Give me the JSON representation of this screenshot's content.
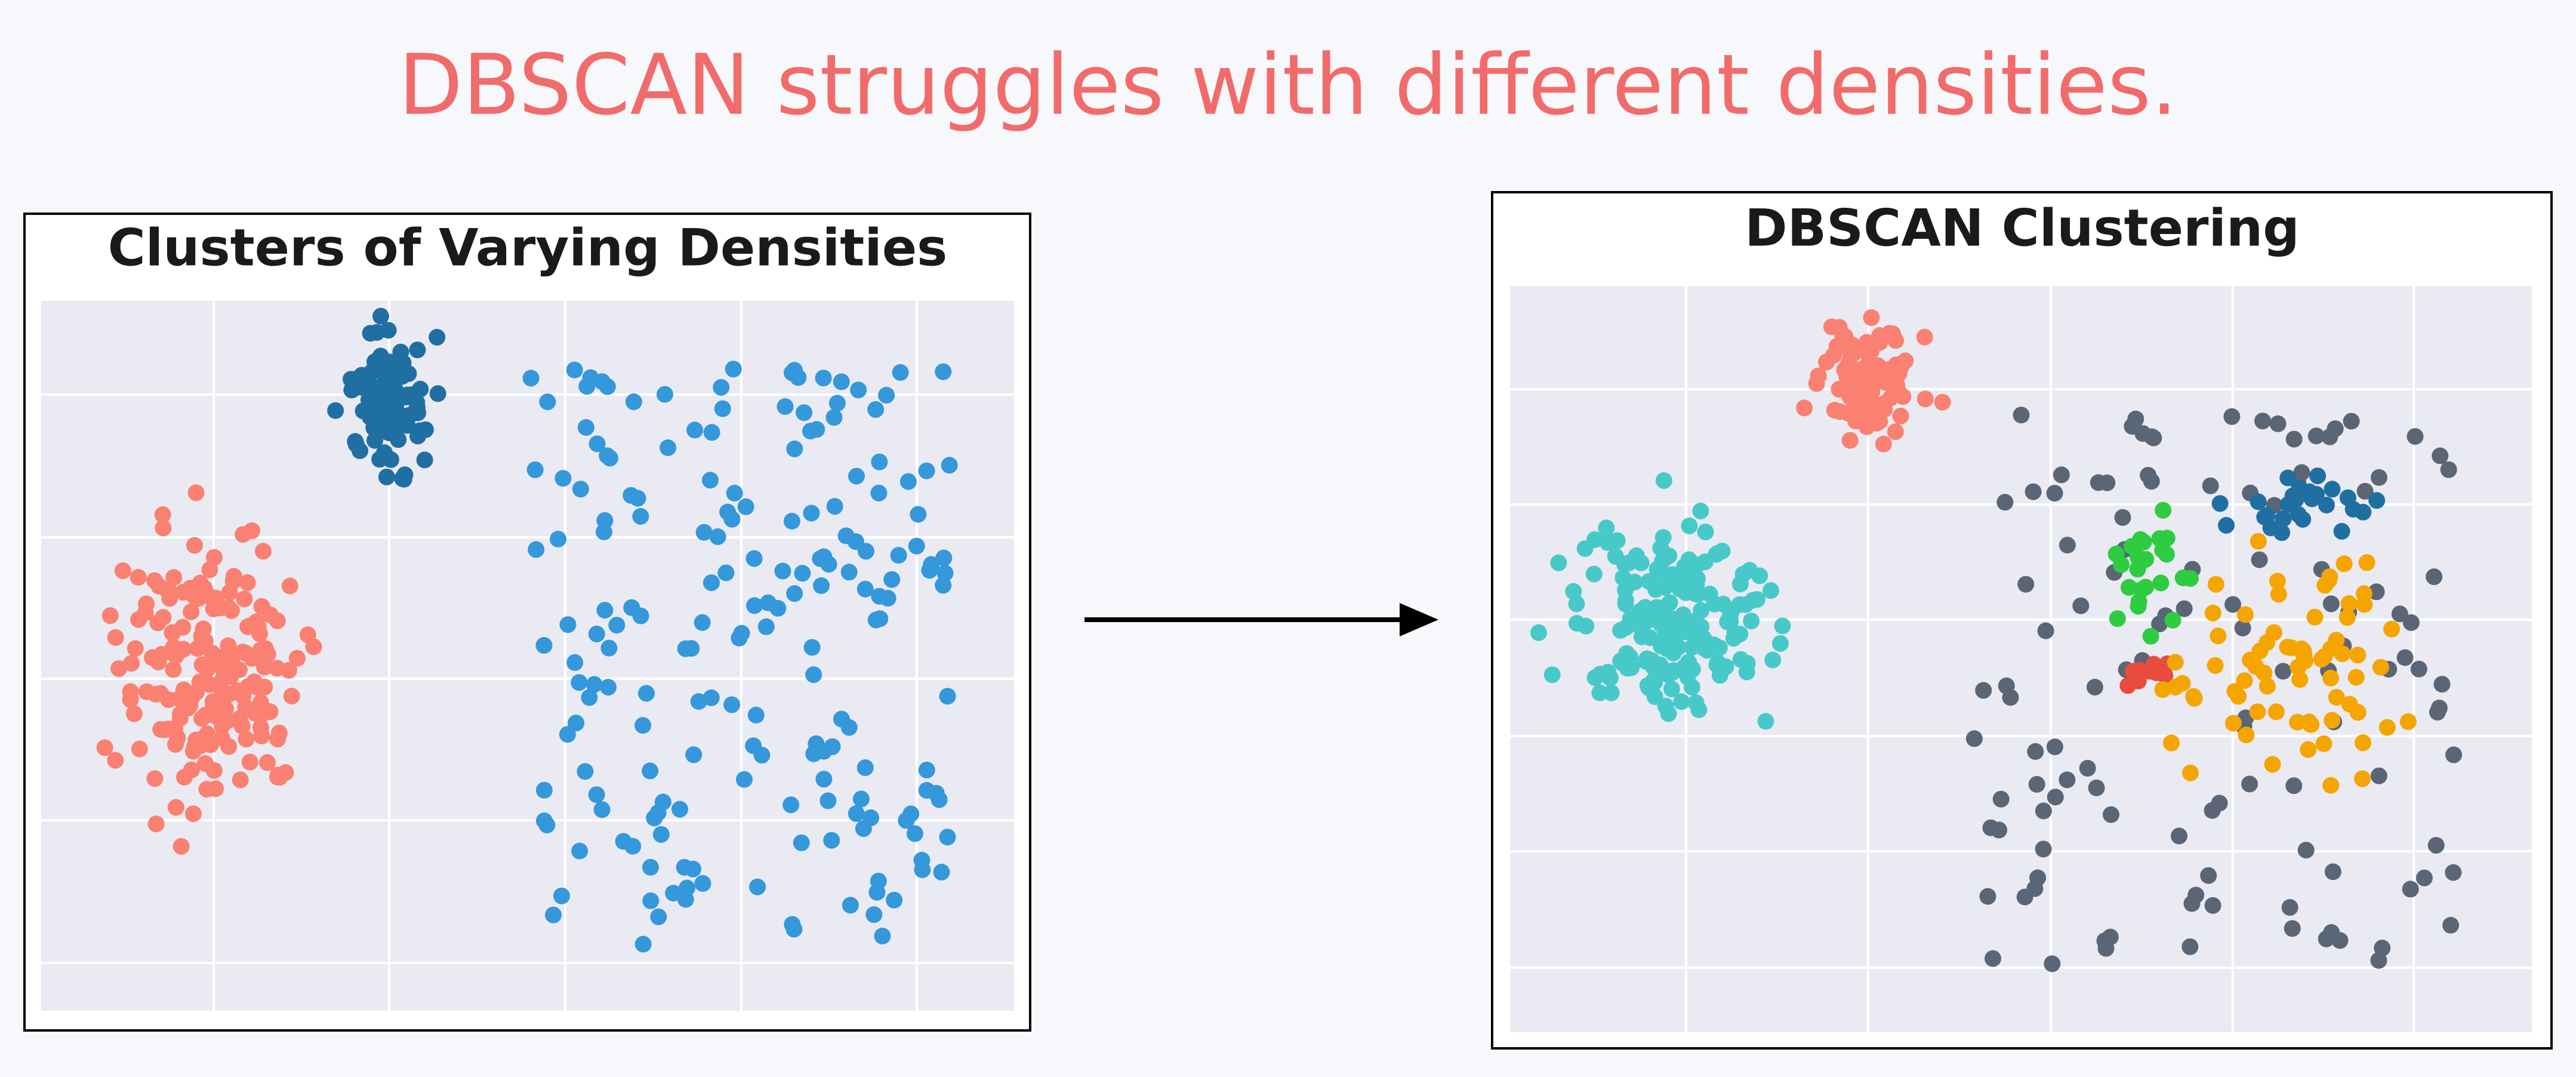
{
  "header": {
    "title": "DBSCAN struggles with different densities."
  },
  "panels": [
    {
      "title": "Clusters of Varying Densities"
    },
    {
      "title": "DBSCAN Clustering"
    }
  ]
}
